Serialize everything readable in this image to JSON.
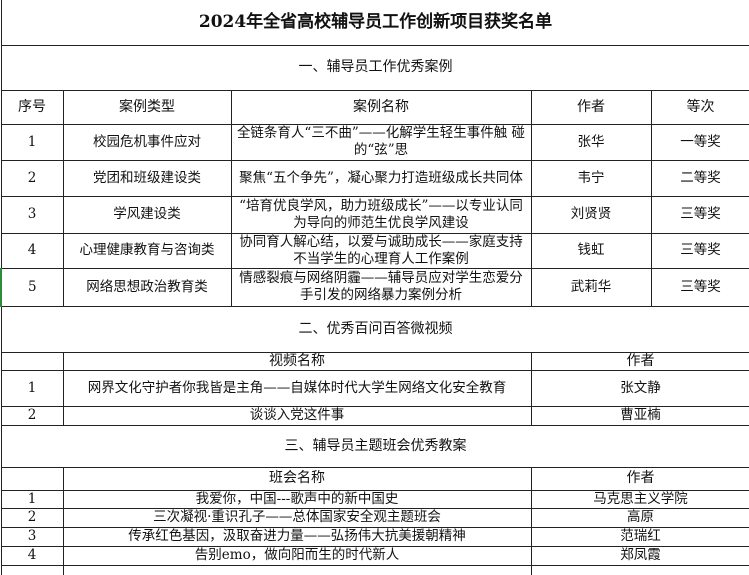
{
  "title": "2024年全省高校辅导员工作创新项目获奖名单",
  "section1": {
    "heading": "一、辅导员工作优秀案例",
    "columns": [
      "序号",
      "案例类型",
      "案例名称",
      "作者",
      "等次"
    ],
    "rows": [
      {
        "no": "1",
        "type": "校园危机事件应对",
        "name": "全链条育人“三不曲”——化解学生轻生事件触 碰的“弦”思",
        "author": "张华",
        "rank": "一等奖"
      },
      {
        "no": "2",
        "type": "党团和班级建设类",
        "name": "聚焦“五个争先”，凝心聚力打造班级成长共同体",
        "author": "韦宁",
        "rank": "二等奖"
      },
      {
        "no": "3",
        "type": "学风建设类",
        "name": "“培育优良学风，助力班级成长”——以专业认同为导向的师范生优良学风建设",
        "author": "刘贤贤",
        "rank": "三等奖"
      },
      {
        "no": "4",
        "type": "心理健康教育与咨询类",
        "name": "协同育人解心结，以爱与诚助成长——家庭支持不当学生的心理育人工作案例",
        "author": "钱虹",
        "rank": "三等奖"
      },
      {
        "no": "5",
        "type": "网络思想政治教育类",
        "name": "情感裂痕与网络阴霾——辅导员应对学生恋爱分手引发的网络暴力案例分析",
        "author": "武莉华",
        "rank": "三等奖"
      }
    ]
  },
  "section2": {
    "heading": "二、优秀百问百答微视频",
    "columns": [
      "",
      "视频名称",
      "作者"
    ],
    "rows": [
      {
        "no": "1",
        "name": "网界文化守护者你我皆是主角——自媒体时代大学生网络文化安全教育",
        "author": "张文静"
      },
      {
        "no": "2",
        "name": "谈谈入党这件事",
        "author": "曹亚楠"
      }
    ]
  },
  "section3": {
    "heading": "三、辅导员主题班会优秀教案",
    "columns": [
      "",
      "班会名称",
      "作者"
    ],
    "rows": [
      {
        "no": "1",
        "name": "我爱你，中国---歌声中的新中国史",
        "author": "马克思主义学院"
      },
      {
        "no": "2",
        "name": "三次凝视·重识孔子——总体国家安全观主题班会",
        "author": "高原"
      },
      {
        "no": "3",
        "name": "传承红色基因，汲取奋进力量——弘扬伟大抗美援朝精神",
        "author": "范瑞红"
      },
      {
        "no": "4",
        "name": "告别emo，做向阳而生的时代新人",
        "author": "郑凤霞"
      }
    ]
  }
}
